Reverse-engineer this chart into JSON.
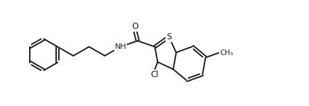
{
  "bg_color": "#ffffff",
  "line_color": "#1a1a1a",
  "bond_width": 1.4,
  "figsize": [
    4.46,
    1.54
  ],
  "dpi": 100,
  "xlim": [
    0,
    8.5
  ],
  "ylim": [
    0,
    3.2
  ]
}
